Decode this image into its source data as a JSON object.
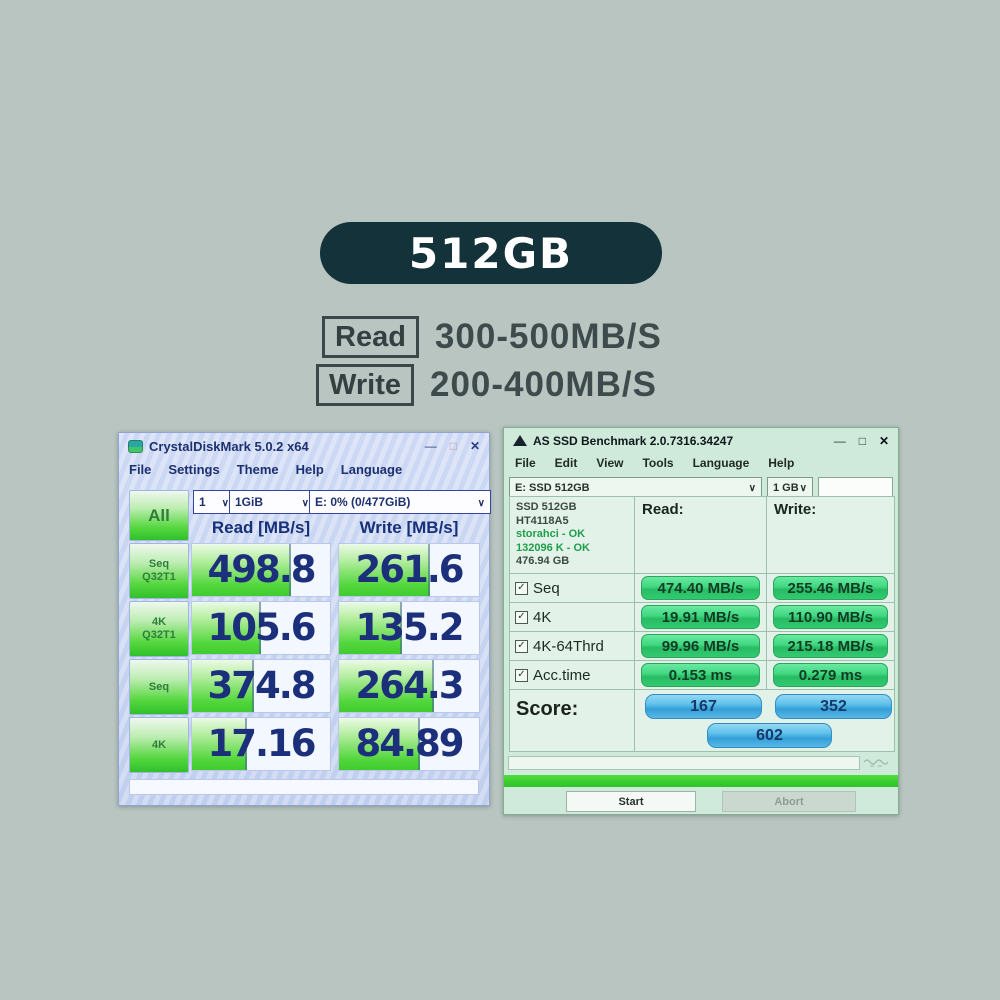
{
  "badge": {
    "label": "512GB",
    "bg": "#14323a"
  },
  "specs": {
    "read_label": "Read",
    "read_value": "300-500MB/S",
    "write_label": "Write",
    "write_value": "200-400MB/S"
  },
  "cdm": {
    "title": "CrystalDiskMark 5.0.2 x64",
    "menu": [
      "File",
      "Settings",
      "Theme",
      "Help",
      "Language"
    ],
    "all_label": "All",
    "combo_count": "1",
    "combo_size": "1GiB",
    "combo_drive": "E: 0% (0/477GiB)",
    "col_read": "Read [MB/s]",
    "col_write": "Write [MB/s]",
    "rows": [
      {
        "label1": "Seq",
        "label2": "Q32T1",
        "read": "498.8",
        "write": "261.6",
        "read_fill": 72,
        "write_fill": 65
      },
      {
        "label1": "4K",
        "label2": "Q32T1",
        "read": "105.6",
        "write": "135.2",
        "read_fill": 50,
        "write_fill": 45
      },
      {
        "label1": "Seq",
        "label2": "",
        "read": "374.8",
        "write": "264.3",
        "read_fill": 45,
        "write_fill": 68
      },
      {
        "label1": "4K",
        "label2": "",
        "read": "17.16",
        "write": "84.89",
        "read_fill": 40,
        "write_fill": 58
      }
    ]
  },
  "asssd": {
    "title": "AS SSD Benchmark 2.0.7316.34247",
    "menu": [
      "File",
      "Edit",
      "View",
      "Tools",
      "Language",
      "Help"
    ],
    "combo_drive": "E: SSD 512GB",
    "combo_size": "1 GB",
    "info_lines": [
      "SSD 512GB",
      "HT4118A5",
      "storahci - OK",
      "132096 K - OK",
      "476.94 GB"
    ],
    "col_read": "Read:",
    "col_write": "Write:",
    "rows": [
      {
        "label": "Seq",
        "read": "474.40 MB/s",
        "write": "255.46 MB/s"
      },
      {
        "label": "4K",
        "read": "19.91 MB/s",
        "write": "110.90 MB/s"
      },
      {
        "label": "4K-64Thrd",
        "read": "99.96 MB/s",
        "write": "215.18 MB/s"
      },
      {
        "label": "Acc.time",
        "read": "0.153 ms",
        "write": "0.279 ms"
      }
    ],
    "score_label": "Score:",
    "score_read": "167",
    "score_write": "352",
    "score_total": "602",
    "start_label": "Start",
    "abort_label": "Abort"
  }
}
